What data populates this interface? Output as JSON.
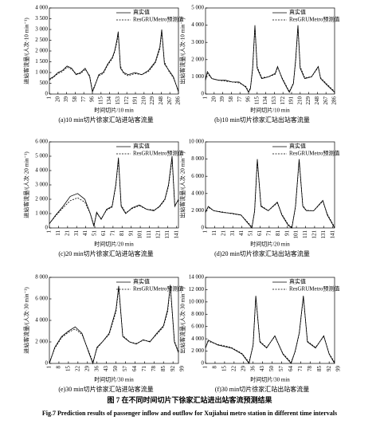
{
  "chart_data": [
    {
      "type": "line",
      "caption": "(a)10 min切片徐家汇站进站客流量",
      "xlabel": "时间切片/10 min",
      "ylabel": "进站客流量/(人次·10 min⁻¹)",
      "x": [
        1,
        10,
        20,
        30,
        40,
        50,
        60,
        70,
        80,
        90,
        96,
        100,
        110,
        120,
        130,
        140,
        145,
        150,
        153,
        158,
        165,
        175,
        190,
        205,
        220,
        235,
        245,
        249,
        255,
        265,
        275,
        286
      ],
      "series": [
        {
          "name": "真实值",
          "color": "#000000",
          "dash": false,
          "values": [
            700,
            800,
            1000,
            1100,
            1300,
            1200,
            900,
            1000,
            1200,
            800,
            100,
            300,
            900,
            1000,
            1400,
            1700,
            2000,
            2500,
            2900,
            1200,
            1000,
            900,
            1000,
            900,
            1100,
            1500,
            2200,
            3000,
            1400,
            1100,
            800,
            100
          ]
        },
        {
          "name": "ResGRUMetro预测值",
          "color": "#000000",
          "dash": true,
          "values": [
            650,
            780,
            950,
            1050,
            1250,
            1150,
            950,
            950,
            1150,
            850,
            150,
            350,
            850,
            950,
            1350,
            1650,
            1950,
            2400,
            2800,
            1300,
            950,
            850,
            950,
            900,
            1050,
            1450,
            2100,
            2900,
            1500,
            1050,
            750,
            150
          ]
        }
      ],
      "xlim": [
        1,
        286
      ],
      "xticks": [
        1,
        20,
        39,
        58,
        77,
        96,
        115,
        134,
        153,
        172,
        191,
        210,
        229,
        248,
        267,
        286
      ],
      "ylim": [
        0,
        4000
      ],
      "yticks": [
        0,
        500,
        {
          "value": 1000,
          "label": "1 000"
        },
        {
          "value": 1500,
          "label": "1 500"
        },
        {
          "value": 2000,
          "label": "2 000"
        },
        {
          "value": 2500,
          "label": "2 500"
        },
        {
          "value": 3000,
          "label": "3 000"
        },
        {
          "value": 3500,
          "label": "3 500"
        },
        {
          "value": 4000,
          "label": "4 000"
        }
      ]
    },
    {
      "type": "line",
      "caption": "(b)10 min切片徐家汇站出站客流量",
      "xlabel": "时间切片/10 min",
      "ylabel": "出站客流量/(人次·10 min⁻¹)",
      "x": [
        1,
        5,
        15,
        30,
        45,
        60,
        75,
        90,
        96,
        100,
        105,
        110,
        115,
        125,
        140,
        155,
        160,
        170,
        180,
        186,
        195,
        200,
        205,
        210,
        220,
        235,
        250,
        255,
        270,
        286
      ],
      "series": [
        {
          "name": "真实值",
          "color": "#000000",
          "dash": false,
          "values": [
            800,
            1300,
            900,
            800,
            800,
            700,
            700,
            400,
            100,
            300,
            1500,
            4000,
            1500,
            900,
            1000,
            1200,
            1600,
            900,
            400,
            100,
            600,
            2000,
            4000,
            1500,
            900,
            1000,
            1600,
            900,
            500,
            100
          ]
        },
        {
          "name": "ResGRUMetro预测值",
          "color": "#000000",
          "dash": true,
          "values": [
            850,
            1200,
            900,
            800,
            750,
            700,
            650,
            450,
            150,
            350,
            1400,
            3900,
            1600,
            950,
            1000,
            1150,
            1550,
            950,
            450,
            150,
            650,
            1900,
            3900,
            1600,
            950,
            1000,
            1550,
            950,
            550,
            150
          ]
        }
      ],
      "xlim": [
        1,
        286
      ],
      "xticks": [
        1,
        20,
        39,
        58,
        77,
        96,
        115,
        134,
        153,
        172,
        191,
        210,
        229,
        248,
        267,
        286
      ],
      "ylim": [
        0,
        5000
      ],
      "yticks": [
        0,
        {
          "value": 1000,
          "label": "1 000"
        },
        {
          "value": 2000,
          "label": "2 000"
        },
        {
          "value": 3000,
          "label": "3 000"
        },
        {
          "value": 4000,
          "label": "4 000"
        },
        {
          "value": 5000,
          "label": "5 000"
        }
      ]
    },
    {
      "type": "line",
      "caption": "(c)20 min切片徐家汇站进站客流量",
      "xlabel": "时间切片/20 min",
      "ylabel": "进站客流量/(人次·20 min⁻¹)",
      "x": [
        1,
        8,
        16,
        24,
        32,
        40,
        46,
        50,
        53,
        58,
        64,
        70,
        74,
        77,
        80,
        85,
        92,
        100,
        108,
        116,
        122,
        128,
        132,
        136,
        139,
        143
      ],
      "series": [
        {
          "name": "真实值",
          "color": "#000000",
          "dash": false,
          "values": [
            300,
            900,
            1500,
            2200,
            2400,
            2000,
            1000,
            100,
            1100,
            600,
            1300,
            1500,
            3000,
            4900,
            1500,
            1000,
            1400,
            1600,
            1300,
            1200,
            1500,
            2000,
            3000,
            5000,
            1500,
            2000
          ]
        },
        {
          "name": "ResGRUMetro预测值",
          "color": "#000000",
          "dash": true,
          "values": [
            300,
            850,
            1400,
            1900,
            2100,
            1800,
            1000,
            200,
            1000,
            650,
            1250,
            1450,
            2900,
            4700,
            1600,
            1050,
            1350,
            1550,
            1300,
            1250,
            1450,
            1950,
            2900,
            4800,
            1600,
            1900
          ]
        }
      ],
      "xlim": [
        1,
        143
      ],
      "xticks": [
        1,
        11,
        21,
        31,
        41,
        51,
        61,
        71,
        81,
        91,
        101,
        111,
        121,
        131,
        141
      ],
      "ylim": [
        0,
        6000
      ],
      "yticks": [
        0,
        {
          "value": 1000,
          "label": "1 000"
        },
        {
          "value": 2000,
          "label": "2 000"
        },
        {
          "value": 3000,
          "label": "3 000"
        },
        {
          "value": 4000,
          "label": "4 000"
        },
        {
          "value": 5000,
          "label": "5 000"
        },
        {
          "value": 6000,
          "label": "6 000"
        }
      ]
    },
    {
      "type": "line",
      "caption": "(d)20 min切片徐家汇站出站客流量",
      "xlabel": "时间切片/20 min",
      "ylabel": "出站客流量/(人次·20 min⁻¹)",
      "x": [
        1,
        4,
        10,
        20,
        30,
        40,
        48,
        52,
        55,
        58,
        62,
        70,
        80,
        85,
        92,
        96,
        100,
        104,
        108,
        112,
        120,
        130,
        135,
        143
      ],
      "series": [
        {
          "name": "真实值",
          "color": "#000000",
          "dash": false,
          "values": [
            1800,
            2500,
            2000,
            1800,
            1700,
            1500,
            500,
            0,
            2000,
            8000,
            2500,
            2000,
            3000,
            1500,
            300,
            0,
            2500,
            8000,
            2500,
            2000,
            2000,
            3200,
            1500,
            0
          ]
        },
        {
          "name": "ResGRUMetro预测值",
          "color": "#000000",
          "dash": true,
          "values": [
            1900,
            2400,
            2000,
            1850,
            1650,
            1500,
            600,
            100,
            1900,
            7800,
            2600,
            2000,
            2900,
            1600,
            400,
            100,
            2400,
            7800,
            2600,
            2050,
            2000,
            3100,
            1600,
            100
          ]
        }
      ],
      "xlim": [
        1,
        143
      ],
      "xticks": [
        1,
        11,
        21,
        31,
        41,
        51,
        61,
        71,
        81,
        91,
        101,
        111,
        121,
        131,
        141
      ],
      "ylim": [
        0,
        10000
      ],
      "yticks": [
        0,
        {
          "value": 2000,
          "label": "2 000"
        },
        {
          "value": 4000,
          "label": "4 000"
        },
        {
          "value": 6000,
          "label": "6 000"
        },
        {
          "value": 8000,
          "label": "8 000"
        },
        {
          "value": 10000,
          "label": "10 000"
        }
      ]
    },
    {
      "type": "line",
      "caption": "(e)30 min切片徐家汇站进站客流量",
      "xlabel": "时间切片/30 min",
      "ylabel": "进站客流量/(人次·30 min⁻¹)",
      "x": [
        1,
        5,
        10,
        15,
        20,
        25,
        30,
        33,
        36,
        40,
        45,
        50,
        52,
        55,
        60,
        65,
        70,
        75,
        80,
        85,
        88,
        90,
        93,
        96
      ],
      "series": [
        {
          "name": "真实值",
          "color": "#000000",
          "dash": false,
          "values": [
            0,
            1500,
            2500,
            3000,
            3400,
            2800,
            1000,
            0,
            1500,
            2000,
            2800,
            5000,
            7200,
            2500,
            2000,
            1800,
            2200,
            2000,
            2800,
            3500,
            5000,
            7300,
            2000,
            1000
          ]
        },
        {
          "name": "ResGRUMetro预测值",
          "color": "#000000",
          "dash": true,
          "values": [
            100,
            1400,
            2400,
            2900,
            3200,
            2700,
            1100,
            100,
            1400,
            2000,
            2700,
            4800,
            7000,
            2600,
            2000,
            1850,
            2150,
            2050,
            2700,
            3400,
            4800,
            7100,
            2100,
            1100
          ]
        }
      ],
      "xlim": [
        1,
        96
      ],
      "xticks": [
        1,
        8,
        15,
        22,
        29,
        36,
        43,
        50,
        57,
        64,
        71,
        78,
        85,
        92,
        99
      ],
      "ylim": [
        0,
        8000
      ],
      "yticks": [
        0,
        {
          "value": 2000,
          "label": "2 000"
        },
        {
          "value": 4000,
          "label": "4 000"
        },
        {
          "value": 6000,
          "label": "6 000"
        },
        {
          "value": 8000,
          "label": "8 000"
        }
      ]
    },
    {
      "type": "line",
      "caption": "(f)30 min切片徐家汇站出站客流量",
      "xlabel": "时间切片/30 min",
      "ylabel": "出站客流量/(人次·30 min⁻¹)",
      "x": [
        1,
        3,
        10,
        20,
        28,
        33,
        36,
        38,
        41,
        46,
        52,
        58,
        64,
        67,
        70,
        73,
        76,
        82,
        88,
        92,
        96
      ],
      "series": [
        {
          "name": "真实值",
          "color": "#000000",
          "dash": false,
          "values": [
            2500,
            3800,
            3000,
            2500,
            1500,
            0,
            3000,
            11000,
            3500,
            2500,
            4500,
            1500,
            0,
            2000,
            5000,
            11000,
            3500,
            2500,
            4500,
            1500,
            0
          ]
        },
        {
          "name": "ResGRUMetro预测值",
          "color": "#000000",
          "dash": true,
          "values": [
            2600,
            3600,
            3100,
            2600,
            1600,
            200,
            2900,
            10800,
            3600,
            2600,
            4400,
            1600,
            200,
            1900,
            4900,
            10800,
            3600,
            2600,
            4400,
            1600,
            200
          ]
        }
      ],
      "xlim": [
        1,
        96
      ],
      "xticks": [
        1,
        8,
        15,
        22,
        29,
        36,
        43,
        50,
        57,
        64,
        71,
        78,
        85,
        92,
        99
      ],
      "ylim": [
        0,
        14000
      ],
      "yticks": [
        0,
        {
          "value": 2000,
          "label": "2 000"
        },
        {
          "value": 4000,
          "label": "4 000"
        },
        {
          "value": 6000,
          "label": "6 000"
        },
        {
          "value": 8000,
          "label": "8 000"
        },
        {
          "value": 10000,
          "label": "10 000"
        },
        {
          "value": 12000,
          "label": "12 000"
        },
        {
          "value": 14000,
          "label": "14 000"
        }
      ]
    }
  ],
  "figure_caption": "图 7   在不同时间切片下徐家汇站进出站客流预测结果",
  "figure_caption_en": "Fig.7   Prediction results of passenger inflow and outflow for Xujiahui metro station in different time intervals"
}
